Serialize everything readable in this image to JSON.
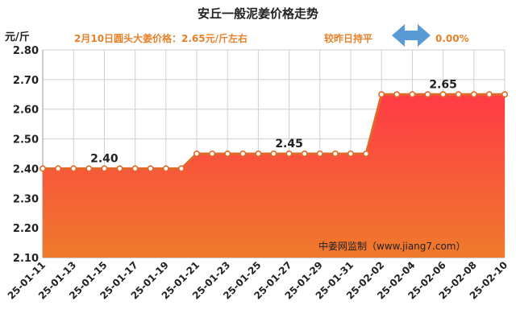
{
  "header": {
    "title": "安丘一般泥姜价格走势",
    "price_note": "2月10日圆头大姜价格：2.65元/斤左右",
    "compare_label": "较昨日持平",
    "change_percent": "0.00%",
    "unit_label": "元/斤",
    "watermark": "中姜网监制（www.jiang7.com）"
  },
  "colors": {
    "line": "#e06a2a",
    "fill_top": "#ff3b45",
    "fill_bottom": "#ef7a2c",
    "accent_text": "#e8822a",
    "arrow": "#5b9bd5"
  },
  "chart_data": {
    "type": "area",
    "title": "安丘一般泥姜价格走势",
    "ylabel": "元/斤",
    "ylim": [
      2.1,
      2.8
    ],
    "yticks": [
      "2.10",
      "2.20",
      "2.30",
      "2.40",
      "2.50",
      "2.60",
      "2.70",
      "2.80"
    ],
    "x": [
      "25-01-11",
      "25-01-12",
      "25-01-13",
      "25-01-14",
      "25-01-15",
      "25-01-16",
      "25-01-17",
      "25-01-18",
      "25-01-19",
      "25-01-20",
      "25-01-21",
      "25-01-22",
      "25-01-23",
      "25-01-24",
      "25-01-25",
      "25-01-26",
      "25-01-27",
      "25-01-28",
      "25-01-29",
      "25-01-30",
      "25-01-31",
      "25-02-01",
      "25-02-02",
      "25-02-03",
      "25-02-04",
      "25-02-05",
      "25-02-06",
      "25-02-07",
      "25-02-08",
      "25-02-09",
      "25-02-10"
    ],
    "xtick_labels": [
      "25-01-11",
      "25-01-13",
      "25-01-15",
      "25-01-17",
      "25-01-19",
      "25-01-21",
      "25-01-23",
      "25-01-25",
      "25-01-27",
      "25-01-29",
      "25-01-31",
      "25-02-02",
      "25-02-04",
      "25-02-06",
      "25-02-08",
      "25-02-10"
    ],
    "values": [
      2.4,
      2.4,
      2.4,
      2.4,
      2.4,
      2.4,
      2.4,
      2.4,
      2.4,
      2.4,
      2.45,
      2.45,
      2.45,
      2.45,
      2.45,
      2.45,
      2.45,
      2.45,
      2.45,
      2.45,
      2.45,
      2.45,
      2.65,
      2.65,
      2.65,
      2.65,
      2.65,
      2.65,
      2.65,
      2.65,
      2.65
    ],
    "data_labels": [
      {
        "x": "25-01-15",
        "text": "2.40"
      },
      {
        "x": "25-01-27",
        "text": "2.45"
      },
      {
        "x": "25-02-06",
        "text": "2.65"
      }
    ],
    "grid": true
  }
}
